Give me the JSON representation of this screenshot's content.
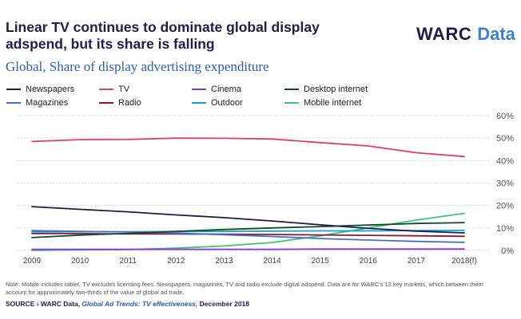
{
  "title": "Linear TV continues to dominate global display adspend, but its share is falling",
  "logo": {
    "warc": "WARC",
    "data": "Data"
  },
  "chart_data": {
    "type": "line",
    "title": "Global, Share of display advertising expenditure",
    "xlabel": "",
    "ylabel": "",
    "x": [
      "2009",
      "2010",
      "2011",
      "2012",
      "2013",
      "2014",
      "2015",
      "2016",
      "2017",
      "2018(f)"
    ],
    "ylim": [
      0,
      60
    ],
    "yticks": [
      "0%",
      "10%",
      "20%",
      "30%",
      "40%",
      "50%",
      "60%"
    ],
    "grid": true,
    "legend_position": "top",
    "series": [
      {
        "name": "Newspapers",
        "color": "#1f1d4a",
        "values": [
          19.5,
          18.3,
          17.2,
          15.8,
          14.6,
          13.1,
          11.4,
          9.8,
          8.6,
          7.8
        ]
      },
      {
        "name": "TV",
        "color": "#e0405a",
        "values": [
          48.5,
          49.3,
          49.4,
          50.0,
          49.9,
          49.6,
          48.0,
          46.5,
          43.5,
          41.8
        ]
      },
      {
        "name": "Cinema",
        "color": "#8b2fd9",
        "values": [
          0.5,
          0.5,
          0.5,
          0.5,
          0.5,
          0.5,
          0.6,
          0.6,
          0.6,
          0.6
        ]
      },
      {
        "name": "Desktop internet",
        "color": "#0f4d2a",
        "values": [
          5.7,
          6.8,
          7.6,
          8.5,
          9.3,
          10.0,
          10.6,
          11.3,
          12.0,
          12.4
        ]
      },
      {
        "name": "Magazines",
        "color": "#4a6cc9",
        "values": [
          8.8,
          8.5,
          8.2,
          7.7,
          7.0,
          6.2,
          5.3,
          4.6,
          4.0,
          3.6
        ]
      },
      {
        "name": "Radio",
        "color": "#8a1a3a",
        "values": [
          7.5,
          7.5,
          7.3,
          7.3,
          7.2,
          7.1,
          6.9,
          6.7,
          6.5,
          6.3
        ]
      },
      {
        "name": "Outdoor",
        "color": "#1aa0c8",
        "values": [
          8.2,
          8.3,
          8.3,
          8.4,
          8.5,
          8.6,
          8.7,
          8.7,
          8.8,
          8.9
        ]
      },
      {
        "name": "Mobile internet",
        "color": "#3cc47c",
        "values": [
          0.0,
          0.2,
          0.4,
          1.0,
          2.0,
          3.5,
          6.5,
          10.0,
          13.5,
          16.5
        ]
      }
    ]
  },
  "note": "Note: Mobile includes tablet. TV excludes licensing fees. Newspapers, magazines, TV and radio exclude digital adspend. Data are for WARC's 12 key markets, which between them account for approximately two-thirds of the value of global ad trade.",
  "source": {
    "prefix": "SOURCE › WARC Data, ",
    "detail": "Global Ad Trends: TV effectiveness,",
    "date": " December 2018"
  }
}
